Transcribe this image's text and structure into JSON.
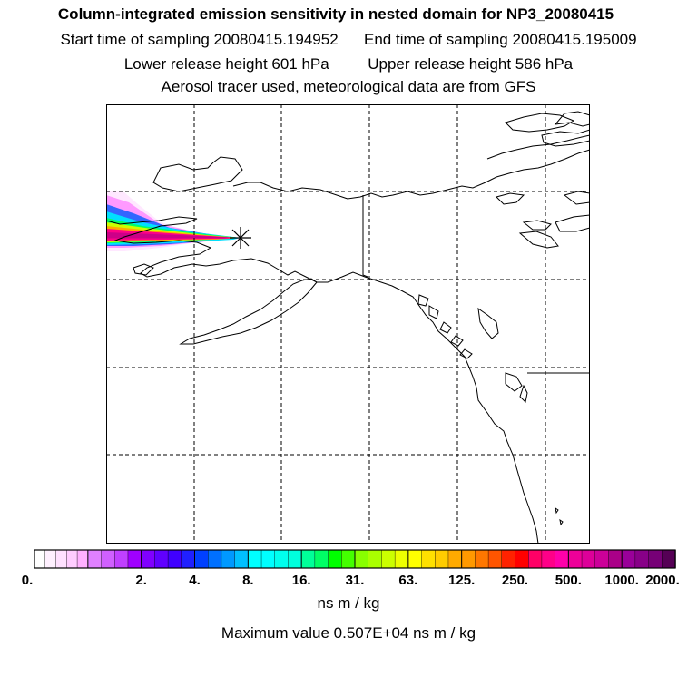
{
  "header": {
    "title": "Column-integrated emission sensitivity in nested domain for NP3_20080415",
    "start_time": "Start time of sampling 20080415.194952",
    "end_time": "End time of sampling 20080415.195009",
    "lower_height": "Lower release height  601 hPa",
    "upper_height": "Upper release height  586 hPa",
    "tracer_note": "Aerosol tracer used, meteorological data are from GFS"
  },
  "map": {
    "release_marker": "asterisk-icon",
    "plume_colors": [
      "#ffe4ff",
      "#ff99ff",
      "#cc44ff",
      "#3300ff",
      "#0099ff",
      "#00ffff",
      "#00ff66",
      "#ccff00",
      "#ffcc00",
      "#ff3300",
      "#ff0099",
      "#cc0088"
    ]
  },
  "colorbar": {
    "tick_labels": [
      "0.",
      "2.",
      "4.",
      "8.",
      "16.",
      "31.",
      "63.",
      "125.",
      "250.",
      "500.",
      "1000.",
      "2000."
    ],
    "segments": [
      [
        "#ffffff",
        "#fff0ff",
        "#ffe0ff",
        "#ffccff",
        "#ffb0ff"
      ],
      [
        "#e080ff",
        "#d060ff",
        "#c040ff",
        "#a000ff"
      ],
      [
        "#8000ff",
        "#6000ff",
        "#4000ff",
        "#2020ff"
      ],
      [
        "#0040ff",
        "#0070ff",
        "#0099ff",
        "#00c0ff"
      ],
      [
        "#00ffff",
        "#00ffff",
        "#00ffee",
        "#00ffdd"
      ],
      [
        "#00ff99",
        "#00ff66",
        "#00ff00",
        "#44ff00"
      ],
      [
        "#88ff00",
        "#aaff00",
        "#ccff00",
        "#eeff00"
      ],
      [
        "#ffff00",
        "#ffe000",
        "#ffcc00",
        "#ffaa00"
      ],
      [
        "#ff9900",
        "#ff7700",
        "#ff5500",
        "#ff2200"
      ],
      [
        "#ff0000",
        "#ff0066",
        "#ff0088",
        "#ff00aa"
      ],
      [
        "#ee0099",
        "#dd0099",
        "#cc0099",
        "#aa0088"
      ],
      [
        "#990099",
        "#880088",
        "#770077",
        "#550055"
      ]
    ],
    "unit": "ns m / kg",
    "max_value": "Maximum value  0.507E+04 ns m / kg"
  }
}
